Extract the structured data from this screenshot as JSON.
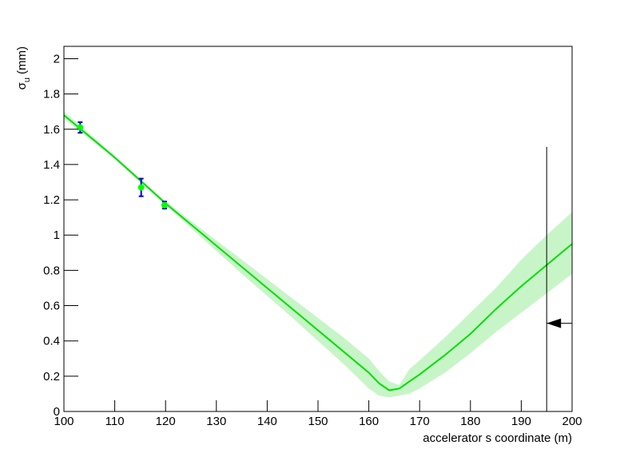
{
  "chart_data": {
    "type": "fit",
    "x_label": "accelerator s coordinate (m)",
    "y_label": {
      "symbol": "σ",
      "subscript": "u",
      "unit": "(mm)"
    },
    "xlim": [
      100,
      200
    ],
    "ylim": [
      0,
      2.07
    ],
    "xticks": [
      100,
      110,
      120,
      130,
      140,
      150,
      160,
      170,
      180,
      190,
      200
    ],
    "yticks": [
      0,
      0.2,
      0.4,
      0.6,
      0.8,
      1,
      1.2,
      1.4,
      1.6,
      1.8,
      2
    ],
    "measurements": {
      "x": [
        103.2,
        115.2,
        119.8
      ],
      "values": [
        1.61,
        1.27,
        1.17
      ],
      "errors": [
        0.03,
        0.05,
        0.02
      ],
      "color": "#00ff00",
      "error_color": "#0000cc"
    },
    "fit": {
      "color": "#00dd00",
      "band_color": "#c8f5c8",
      "x": [
        100,
        105,
        110,
        115,
        120,
        125,
        130,
        135,
        140,
        145,
        150,
        155,
        160,
        162,
        164,
        166,
        168,
        170,
        175,
        180,
        185,
        190,
        195,
        200
      ],
      "values": [
        1.68,
        1.56,
        1.44,
        1.31,
        1.18,
        1.06,
        0.94,
        0.82,
        0.7,
        0.58,
        0.46,
        0.34,
        0.22,
        0.16,
        0.12,
        0.13,
        0.17,
        0.21,
        0.32,
        0.44,
        0.58,
        0.71,
        0.83,
        0.95
      ],
      "lower": [
        1.66,
        1.545,
        1.43,
        1.3,
        1.17,
        1.04,
        0.91,
        0.78,
        0.655,
        0.53,
        0.4,
        0.27,
        0.13,
        0.09,
        0.08,
        0.09,
        0.1,
        0.13,
        0.22,
        0.33,
        0.45,
        0.56,
        0.67,
        0.78
      ],
      "upper": [
        1.7,
        1.575,
        1.45,
        1.32,
        1.19,
        1.08,
        0.97,
        0.86,
        0.75,
        0.64,
        0.53,
        0.42,
        0.3,
        0.23,
        0.17,
        0.15,
        0.24,
        0.29,
        0.42,
        0.56,
        0.7,
        0.86,
        1.0,
        1.13
      ]
    },
    "marker": {
      "x": 195,
      "y_top": 1.5,
      "arrow_y": 0.5
    }
  }
}
